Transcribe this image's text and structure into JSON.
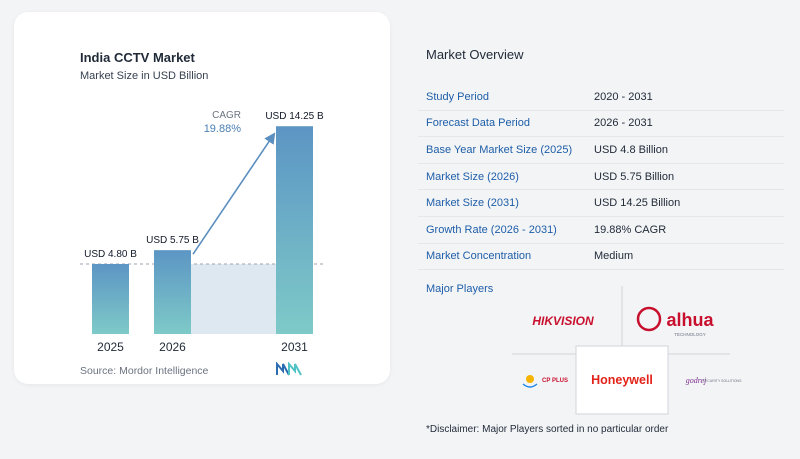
{
  "chart_data": {
    "type": "bar",
    "title": "India CCTV Market",
    "subtitle": "Market Size in USD Billion",
    "categories": [
      "2025",
      "2026",
      "2031"
    ],
    "values": [
      4.8,
      5.75,
      14.25
    ],
    "value_labels": [
      "USD 4.80 B",
      "USD 5.75 B",
      "USD 14.25 B"
    ],
    "cagr_label": "CAGR",
    "cagr_value": "19.88%",
    "ylim": [
      0,
      15.5
    ],
    "reference_value": 4.8,
    "colors": {
      "bar_top": "#5c95c4",
      "bar_bottom": "#7ecac8",
      "shade": "#dde8f1",
      "arrow": "#5b8fc0"
    }
  },
  "source": "Source:  Mordor Intelligence",
  "overview": {
    "title": "Market Overview",
    "rows": [
      {
        "label": "Study Period",
        "value": "2020 - 2031"
      },
      {
        "label": "Forecast Data Period",
        "value": "2026 - 2031"
      },
      {
        "label": "Base Year Market Size (2025)",
        "value": "USD 4.8 Billion"
      },
      {
        "label": "Market Size (2026)",
        "value": "USD 5.75 Billion"
      },
      {
        "label": "Market Size (2031)",
        "value": "USD 14.25 Billion"
      },
      {
        "label": "Growth Rate (2026 - 2031)",
        "value": "19.88% CAGR"
      },
      {
        "label": "Market Concentration",
        "value": "Medium"
      }
    ]
  },
  "players": {
    "title": "Major Players",
    "logos": [
      "HIKVISION",
      "alhua",
      "TECHNOLOGY",
      "CP PLUS",
      "Honeywell",
      "godrej",
      "SECURITY SOLUTIONS"
    ]
  },
  "disclaimer": "*Disclaimer: Major Players sorted in no particular order"
}
